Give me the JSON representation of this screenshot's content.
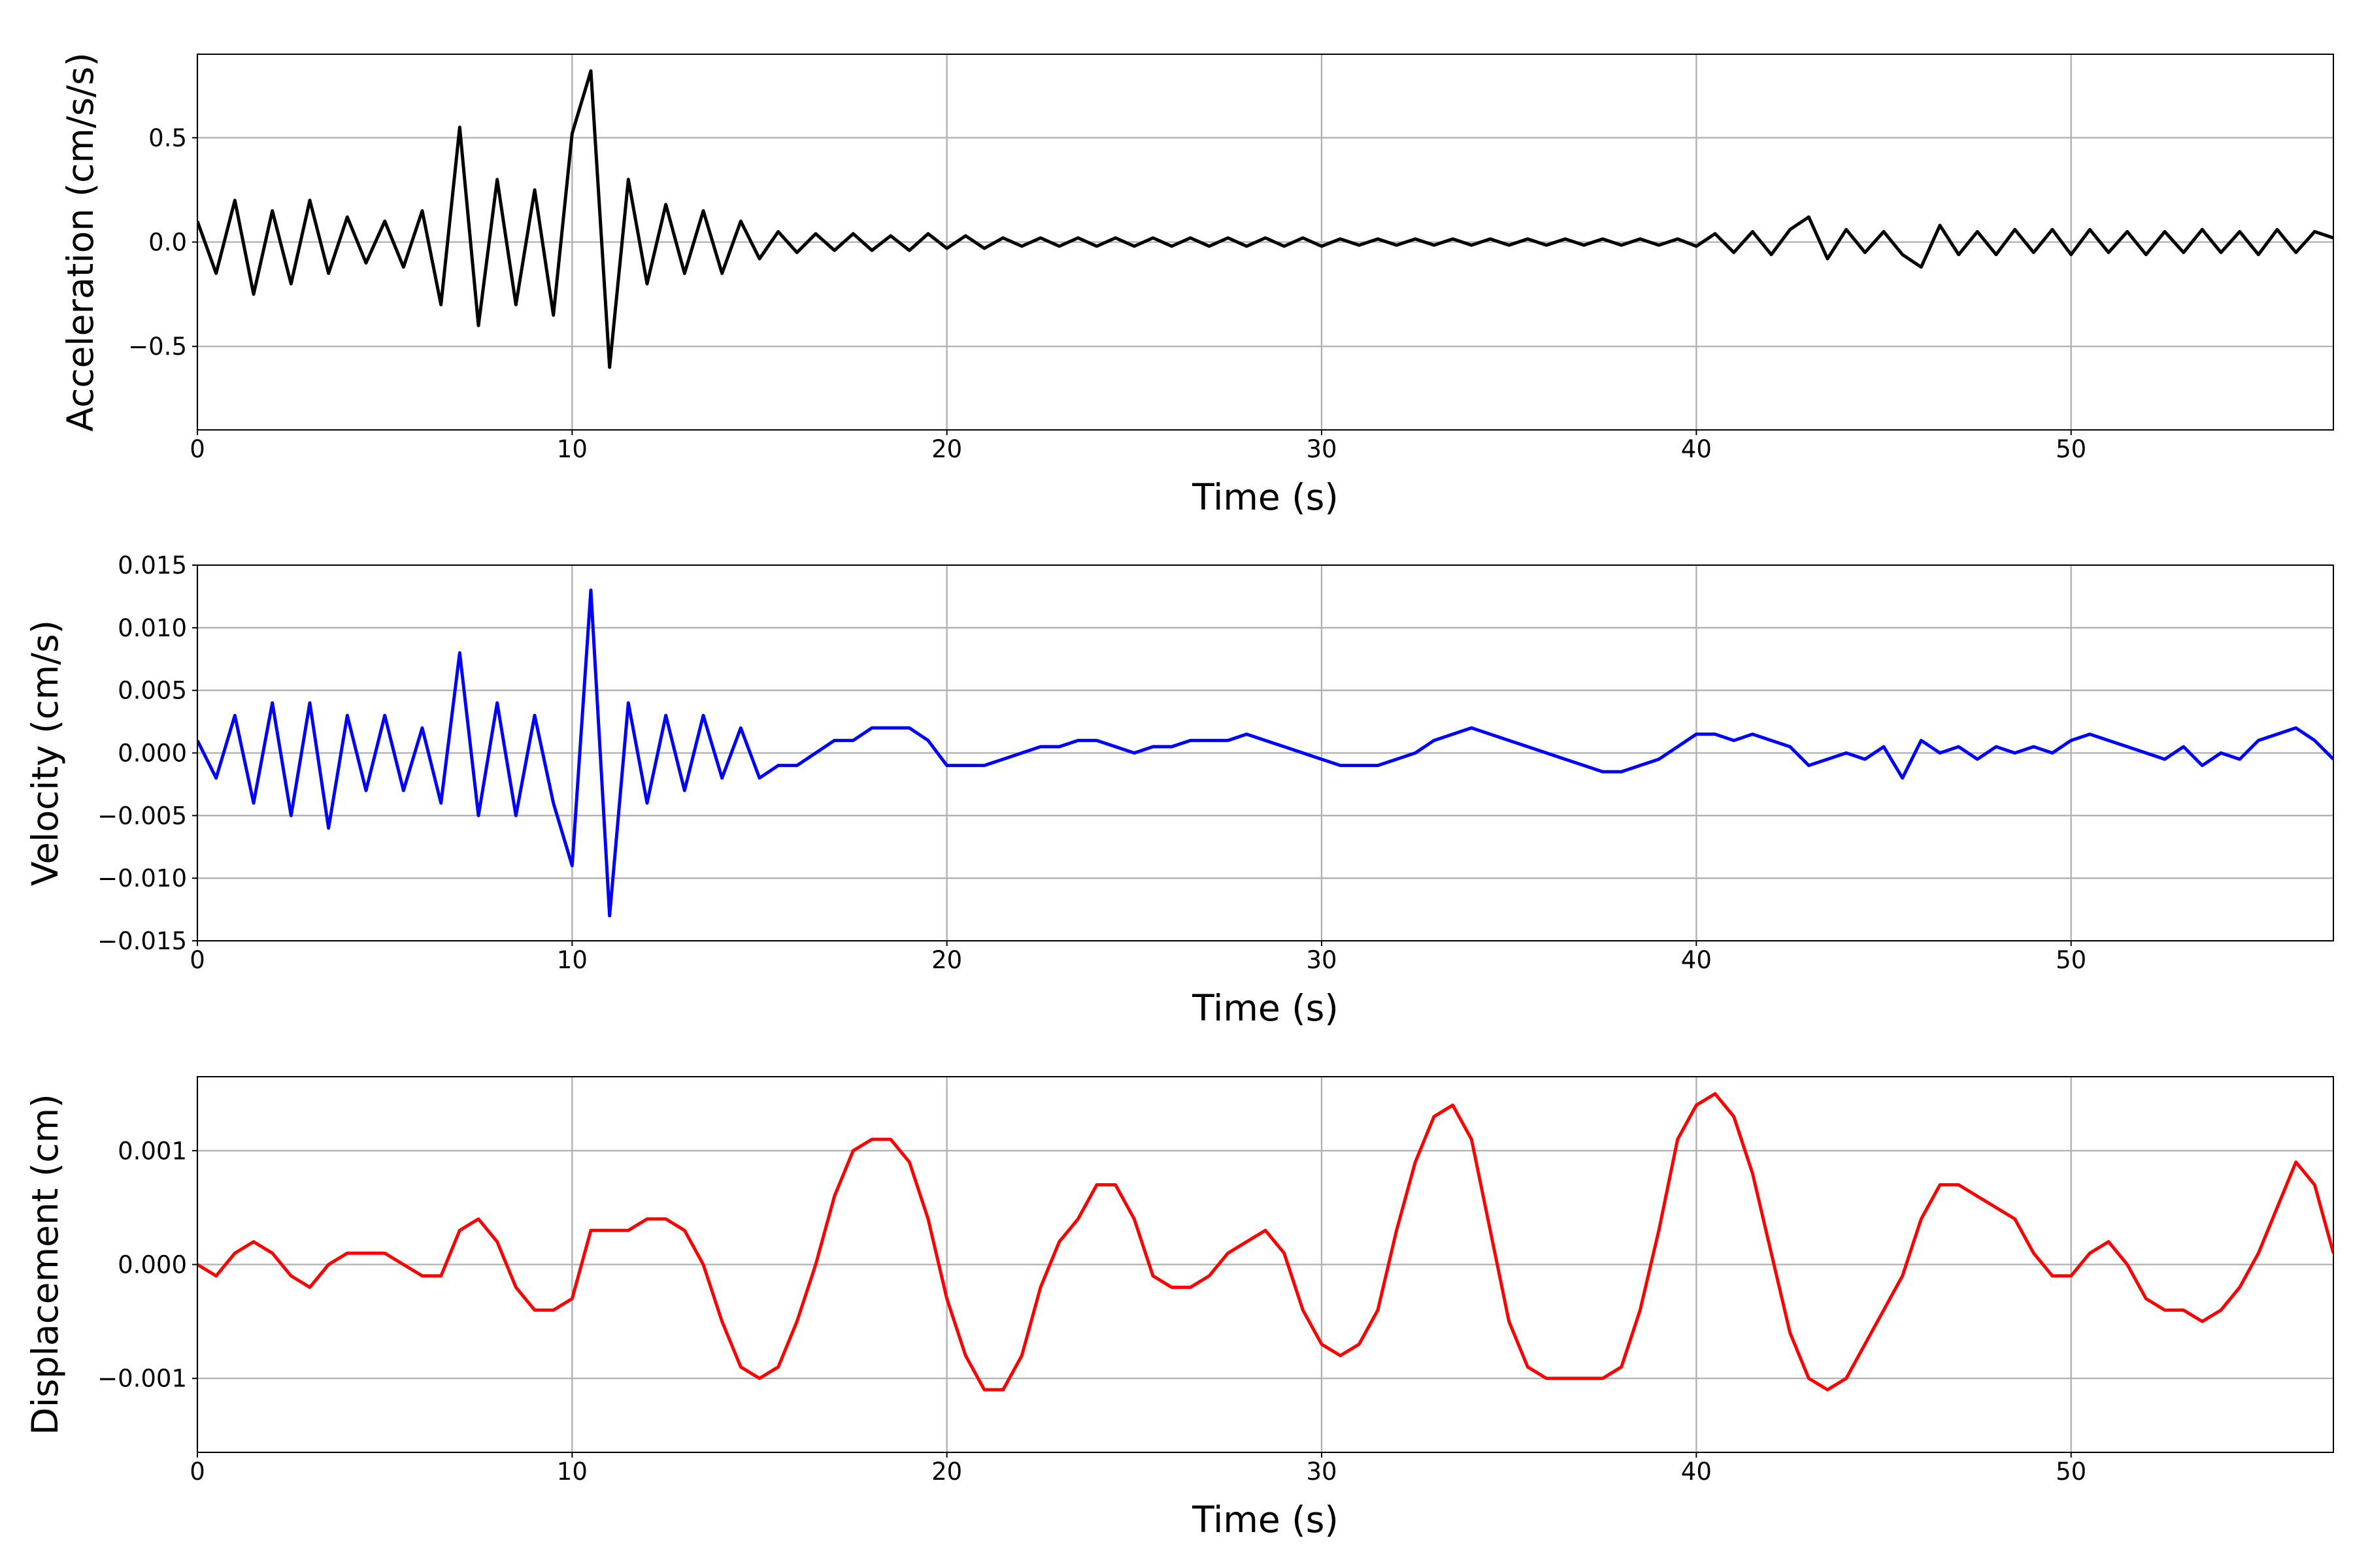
{
  "chart_data": [
    {
      "type": "line",
      "xlabel": "Time (s)",
      "ylabel": "Acceleration (cm/s/s)",
      "color": "#000000",
      "grid": true,
      "xlim": [
        0,
        57
      ],
      "xticks": [
        0,
        10,
        20,
        30,
        40,
        50
      ],
      "ylim": [
        -0.9,
        0.9
      ],
      "yticks": [
        {
          "value": -0.5,
          "label": "−0.5"
        },
        {
          "value": 0,
          "label": "0.0"
        },
        {
          "value": 0.5,
          "label": "0.5"
        }
      ],
      "x": [
        0,
        0.5,
        1,
        1.5,
        2,
        2.5,
        3,
        3.5,
        4,
        4.5,
        5,
        5.5,
        6,
        6.5,
        7,
        7.5,
        8,
        8.5,
        9,
        9.5,
        10,
        10.5,
        11,
        11.5,
        12,
        12.5,
        13,
        13.5,
        14,
        14.5,
        15,
        15.5,
        16,
        16.5,
        17,
        17.5,
        18,
        18.5,
        19,
        19.5,
        20,
        20.5,
        21,
        21.5,
        22,
        22.5,
        23,
        23.5,
        24,
        24.5,
        25,
        25.5,
        26,
        26.5,
        27,
        27.5,
        28,
        28.5,
        29,
        29.5,
        30,
        30.5,
        31,
        31.5,
        32,
        32.5,
        33,
        33.5,
        34,
        34.5,
        35,
        35.5,
        36,
        36.5,
        37,
        37.5,
        38,
        38.5,
        39,
        39.5,
        40,
        40.5,
        41,
        41.5,
        42,
        42.5,
        43,
        43.5,
        44,
        44.5,
        45,
        45.5,
        46,
        46.5,
        47,
        47.5,
        48,
        48.5,
        49,
        49.5,
        50,
        50.5,
        51,
        51.5,
        52,
        52.5,
        53,
        53.5,
        54,
        54.5,
        55,
        55.5,
        56,
        56.5,
        57
      ],
      "values": [
        0.1,
        -0.15,
        0.2,
        -0.25,
        0.15,
        -0.2,
        0.2,
        -0.15,
        0.12,
        -0.1,
        0.1,
        -0.12,
        0.15,
        -0.3,
        0.55,
        -0.4,
        0.3,
        -0.3,
        0.25,
        -0.35,
        0.52,
        0.82,
        -0.6,
        0.3,
        -0.2,
        0.18,
        -0.15,
        0.15,
        -0.15,
        0.1,
        -0.08,
        0.05,
        -0.05,
        0.04,
        -0.04,
        0.04,
        -0.04,
        0.03,
        -0.04,
        0.04,
        -0.03,
        0.03,
        -0.03,
        0.02,
        -0.02,
        0.02,
        -0.02,
        0.02,
        -0.02,
        0.02,
        -0.02,
        0.02,
        -0.02,
        0.02,
        -0.02,
        0.02,
        -0.02,
        0.02,
        -0.02,
        0.02,
        -0.02,
        0.015,
        -0.015,
        0.015,
        -0.015,
        0.015,
        -0.015,
        0.015,
        -0.015,
        0.015,
        -0.015,
        0.015,
        -0.015,
        0.015,
        -0.015,
        0.015,
        -0.015,
        0.015,
        -0.015,
        0.015,
        -0.02,
        0.04,
        -0.05,
        0.05,
        -0.06,
        0.06,
        0.12,
        -0.08,
        0.06,
        -0.05,
        0.05,
        -0.06,
        -0.12,
        0.08,
        -0.06,
        0.05,
        -0.06,
        0.06,
        -0.05,
        0.06,
        -0.06,
        0.06,
        -0.05,
        0.05,
        -0.06,
        0.05,
        -0.05,
        0.06,
        -0.05,
        0.05,
        -0.06,
        0.06,
        -0.05,
        0.05,
        0.02
      ]
    },
    {
      "type": "line",
      "xlabel": "Time (s)",
      "ylabel": "Velocity (cm/s)",
      "color": "#0000ff",
      "grid": true,
      "xlim": [
        0,
        57
      ],
      "xticks": [
        0,
        10,
        20,
        30,
        40,
        50
      ],
      "ylim": [
        -0.015,
        0.015
      ],
      "yticks": [
        {
          "value": -0.015,
          "label": "−0.015"
        },
        {
          "value": -0.01,
          "label": "−0.010"
        },
        {
          "value": -0.005,
          "label": "−0.005"
        },
        {
          "value": 0,
          "label": "0.000"
        },
        {
          "value": 0.005,
          "label": "0.005"
        },
        {
          "value": 0.01,
          "label": "0.010"
        },
        {
          "value": 0.015,
          "label": "0.015"
        }
      ],
      "x": [
        0,
        0.5,
        1,
        1.5,
        2,
        2.5,
        3,
        3.5,
        4,
        4.5,
        5,
        5.5,
        6,
        6.5,
        7,
        7.5,
        8,
        8.5,
        9,
        9.5,
        10,
        10.5,
        11,
        11.5,
        12,
        12.5,
        13,
        13.5,
        14,
        14.5,
        15,
        15.5,
        16,
        16.5,
        17,
        17.5,
        18,
        18.5,
        19,
        19.5,
        20,
        20.5,
        21,
        21.5,
        22,
        22.5,
        23,
        23.5,
        24,
        24.5,
        25,
        25.5,
        26,
        26.5,
        27,
        27.5,
        28,
        28.5,
        29,
        29.5,
        30,
        30.5,
        31,
        31.5,
        32,
        32.5,
        33,
        33.5,
        34,
        34.5,
        35,
        35.5,
        36,
        36.5,
        37,
        37.5,
        38,
        38.5,
        39,
        39.5,
        40,
        40.5,
        41,
        41.5,
        42,
        42.5,
        43,
        43.5,
        44,
        44.5,
        45,
        45.5,
        46,
        46.5,
        47,
        47.5,
        48,
        48.5,
        49,
        49.5,
        50,
        50.5,
        51,
        51.5,
        52,
        52.5,
        53,
        53.5,
        54,
        54.5,
        55,
        55.5,
        56,
        56.5,
        57
      ],
      "values": [
        0.001,
        -0.002,
        0.003,
        -0.004,
        0.004,
        -0.005,
        0.004,
        -0.006,
        0.003,
        -0.003,
        0.003,
        -0.003,
        0.002,
        -0.004,
        0.008,
        -0.005,
        0.004,
        -0.005,
        0.003,
        -0.004,
        -0.009,
        0.013,
        -0.013,
        0.004,
        -0.004,
        0.003,
        -0.003,
        0.003,
        -0.002,
        0.002,
        -0.002,
        -0.001,
        -0.001,
        0,
        0.001,
        0.001,
        0.002,
        0.002,
        0.002,
        0.001,
        -0.001,
        -0.001,
        -0.001,
        -0.0005,
        0,
        0.0005,
        0.0005,
        0.001,
        0.001,
        0.0005,
        0,
        0.0005,
        0.0005,
        0.001,
        0.001,
        0.001,
        0.0015,
        0.001,
        0.0005,
        0,
        -0.0005,
        -0.001,
        -0.001,
        -0.001,
        -0.0005,
        0,
        0.001,
        0.0015,
        0.002,
        0.0015,
        0.001,
        0.0005,
        0,
        -0.0005,
        -0.001,
        -0.0015,
        -0.0015,
        -0.001,
        -0.0005,
        0.0005,
        0.0015,
        0.0015,
        0.001,
        0.0015,
        0.001,
        0.0005,
        -0.001,
        -0.0005,
        0,
        -0.0005,
        0.0005,
        -0.002,
        0.001,
        0,
        0.0005,
        -0.0005,
        0.0005,
        0,
        0.0005,
        0,
        0.001,
        0.0015,
        0.001,
        0.0005,
        0,
        -0.0005,
        0.0005,
        -0.001,
        0,
        -0.0005,
        0.001,
        0.0015,
        0.002,
        0.001,
        -0.0005
      ]
    },
    {
      "type": "line",
      "xlabel": "Time (s)",
      "ylabel": "Displacement (cm)",
      "color": "#ff0000",
      "grid": true,
      "xlim": [
        0,
        57
      ],
      "xticks": [
        0,
        10,
        20,
        30,
        40,
        50
      ],
      "ylim": [
        -0.00165,
        0.00165
      ],
      "yticks": [
        {
          "value": -0.001,
          "label": "−0.001"
        },
        {
          "value": 0,
          "label": "0.000"
        },
        {
          "value": 0.001,
          "label": "0.001"
        }
      ],
      "x": [
        0,
        0.5,
        1,
        1.5,
        2,
        2.5,
        3,
        3.5,
        4,
        4.5,
        5,
        5.5,
        6,
        6.5,
        7,
        7.5,
        8,
        8.5,
        9,
        9.5,
        10,
        10.5,
        11,
        11.5,
        12,
        12.5,
        13,
        13.5,
        14,
        14.5,
        15,
        15.5,
        16,
        16.5,
        17,
        17.5,
        18,
        18.5,
        19,
        19.5,
        20,
        20.5,
        21,
        21.5,
        22,
        22.5,
        23,
        23.5,
        24,
        24.5,
        25,
        25.5,
        26,
        26.5,
        27,
        27.5,
        28,
        28.5,
        29,
        29.5,
        30,
        30.5,
        31,
        31.5,
        32,
        32.5,
        33,
        33.5,
        34,
        34.5,
        35,
        35.5,
        36,
        36.5,
        37,
        37.5,
        38,
        38.5,
        39,
        39.5,
        40,
        40.5,
        41,
        41.5,
        42,
        42.5,
        43,
        43.5,
        44,
        44.5,
        45,
        45.5,
        46,
        46.5,
        47,
        47.5,
        48,
        48.5,
        49,
        49.5,
        50,
        50.5,
        51,
        51.5,
        52,
        52.5,
        53,
        53.5,
        54,
        54.5,
        55,
        55.5,
        56,
        56.5,
        57
      ],
      "values": [
        0,
        -0.0001,
        0.0001,
        0.0002,
        0.0001,
        -0.0001,
        -0.0002,
        0,
        0.0001,
        0.0001,
        0.0001,
        0,
        -0.0001,
        -0.0001,
        0.0003,
        0.0004,
        0.0002,
        -0.0002,
        -0.0004,
        -0.0004,
        -0.0003,
        0.0003,
        0.0003,
        0.0003,
        0.0004,
        0.0004,
        0.0003,
        0,
        -0.0005,
        -0.0009,
        -0.001,
        -0.0009,
        -0.0005,
        0,
        0.0006,
        0.001,
        0.0011,
        0.0011,
        0.0009,
        0.0004,
        -0.0003,
        -0.0008,
        -0.0011,
        -0.0011,
        -0.0008,
        -0.0002,
        0.0002,
        0.0004,
        0.0007,
        0.0007,
        0.0004,
        -0.0001,
        -0.0002,
        -0.0002,
        -0.0001,
        0.0001,
        0.0002,
        0.0003,
        0.0001,
        -0.0004,
        -0.0007,
        -0.0008,
        -0.0007,
        -0.0004,
        0.0003,
        0.0009,
        0.0013,
        0.0014,
        0.0011,
        0.0003,
        -0.0005,
        -0.0009,
        -0.001,
        -0.001,
        -0.001,
        -0.001,
        -0.0009,
        -0.0004,
        0.0003,
        0.0011,
        0.0014,
        0.0015,
        0.0013,
        0.0008,
        0.0001,
        -0.0006,
        -0.001,
        -0.0011,
        -0.001,
        -0.0007,
        -0.0004,
        -0.0001,
        0.0004,
        0.0007,
        0.0007,
        0.0006,
        0.0005,
        0.0004,
        0.0001,
        -0.0001,
        -0.0001,
        0.0001,
        0.0002,
        0,
        -0.0003,
        -0.0004,
        -0.0004,
        -0.0005,
        -0.0004,
        -0.0002,
        0.0001,
        0.0005,
        0.0009,
        0.0007,
        0.0001
      ]
    }
  ]
}
